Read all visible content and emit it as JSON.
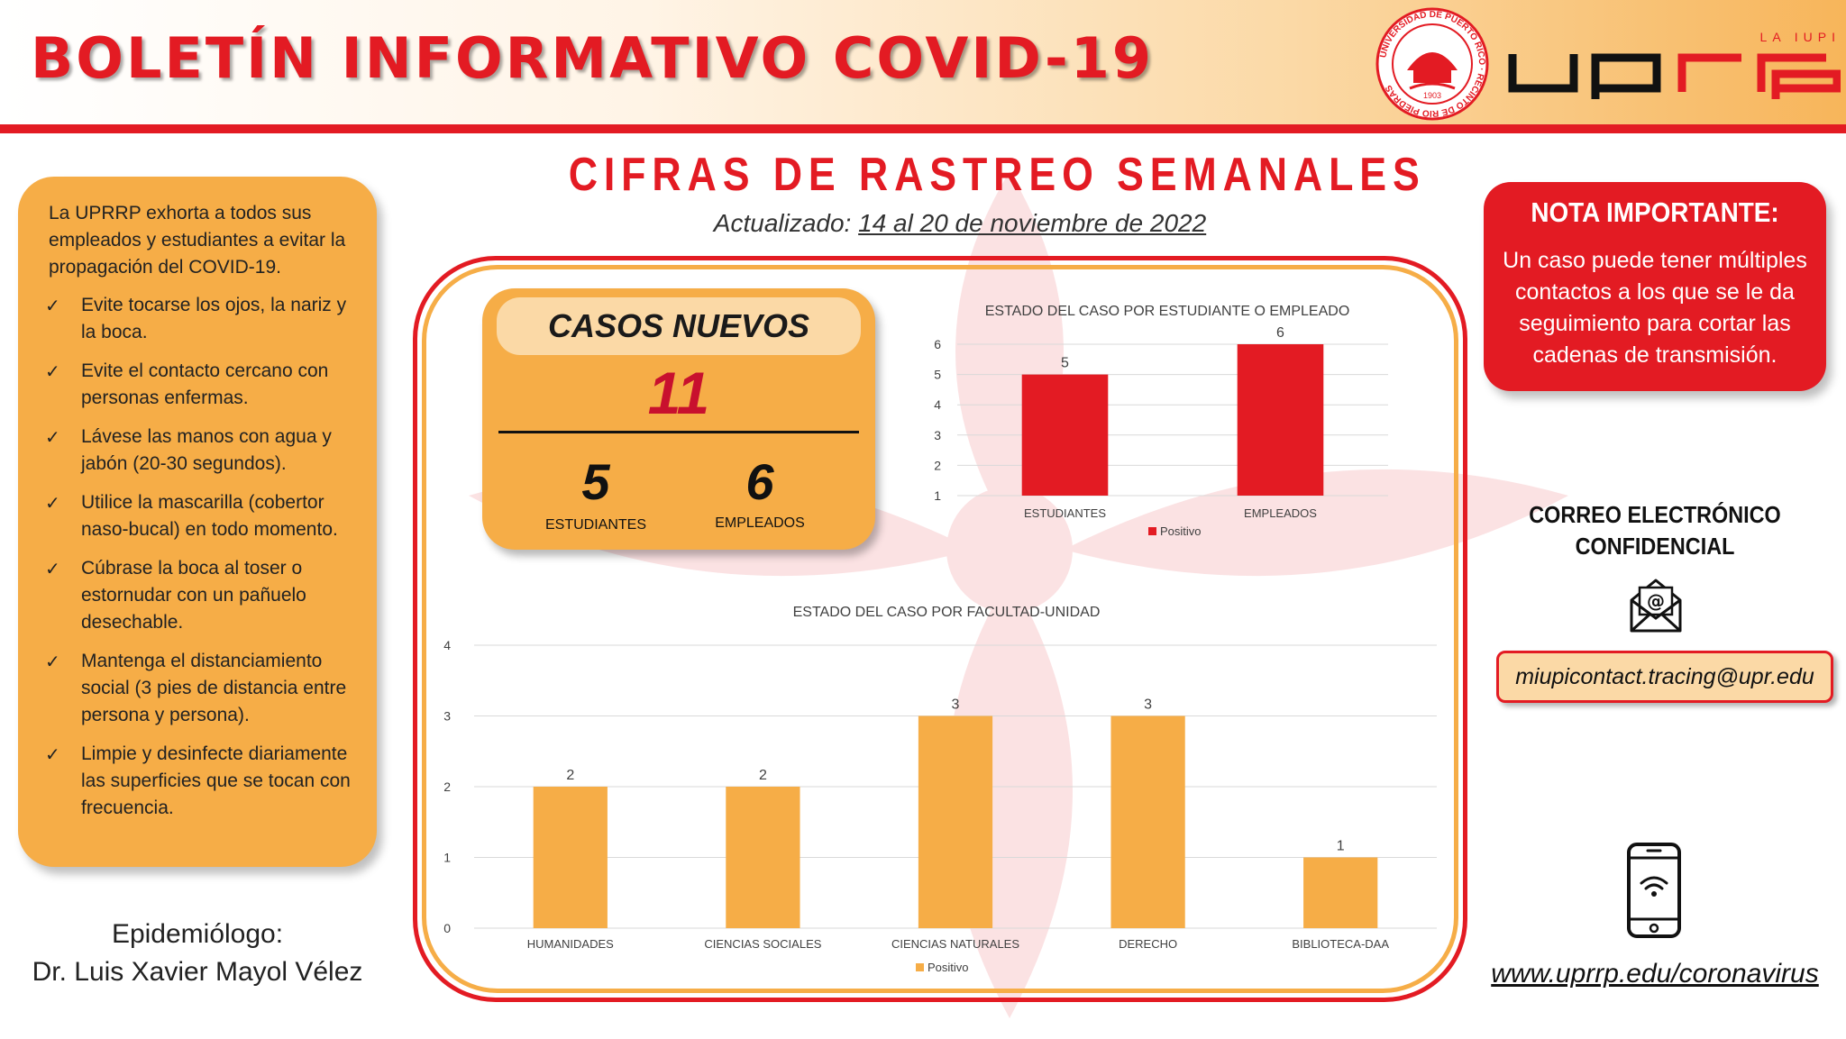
{
  "header": {
    "title": "BOLETÍN INFORMATIVO COVID-19",
    "logo_text": "uprrp",
    "logo_tagline": "LA IUPI",
    "seal_text": "UNIVERSIDAD DE PUERTO RICO · RECINTO DE RÍO PIEDRAS",
    "seal_year": "1903"
  },
  "main": {
    "title": "CIFRAS DE RASTREO SEMANALES",
    "updated_label": "Actualizado:",
    "updated_range": "14 al 20 de noviembre de 2022"
  },
  "left_panel": {
    "intro": "La UPRRP exhorta a todos sus empleados y estudiantes a evitar la propagación del COVID-19.",
    "tips": [
      "Evite tocarse los ojos, la nariz y la boca.",
      "Evite el contacto cercano con personas enfermas.",
      "Lávese las manos con agua y jabón (20-30 segundos).",
      "Utilice la mascarilla (cobertor naso-bucal) en todo momento.",
      "Cúbrase la boca al toser o estornudar con un pañuelo desechable.",
      "Mantenga el distanciamiento social (3 pies de distancia entre persona y persona).",
      "Limpie y desinfecte diariamente las superficies que se tocan con frecuencia."
    ],
    "checkmark": "✓"
  },
  "epidemiologist": {
    "label": "Epidemiólogo:",
    "name": "Dr. Luis Xavier Mayol Vélez"
  },
  "new_cases": {
    "title": "CASOS NUEVOS",
    "total": "11",
    "students_value": "5",
    "students_label": "ESTUDIANTES",
    "employees_value": "6",
    "employees_label": "EMPLEADOS"
  },
  "chart_data": [
    {
      "type": "bar",
      "title": "ESTADO DEL CASO POR ESTUDIANTE O EMPLEADO",
      "categories": [
        "ESTUDIANTES",
        "EMPLEADOS"
      ],
      "series": [
        {
          "name": "Positivo",
          "values": [
            5,
            6
          ]
        }
      ],
      "ylim": [
        1,
        6
      ],
      "yticks": [
        1,
        2,
        3,
        4,
        5,
        6
      ],
      "grid": true,
      "legend": "bottom",
      "color": "#e31b23"
    },
    {
      "type": "bar",
      "title": "ESTADO DEL CASO POR FACULTAD-UNIDAD",
      "categories": [
        "HUMANIDADES",
        "CIENCIAS SOCIALES",
        "CIENCIAS NATURALES",
        "DERECHO",
        "BIBLIOTECA-DAA"
      ],
      "series": [
        {
          "name": "Positivo",
          "values": [
            2,
            2,
            3,
            3,
            1
          ]
        }
      ],
      "ylim": [
        0,
        4
      ],
      "yticks": [
        0,
        1,
        2,
        3,
        4
      ],
      "grid": true,
      "legend": "bottom",
      "color": "#f6ad47"
    }
  ],
  "note": {
    "title": "NOTA IMPORTANTE:",
    "text": "Un caso puede tener múltiples contactos a los que se le da seguimiento para cortar las cadenas de transmisión."
  },
  "contact": {
    "label": "CORREO ELECTRÓNICO CONFIDENCIAL",
    "email": "miupicontact.tracing@upr.edu",
    "website": "www.uprrp.edu/coronavirus",
    "mail_icon": "envelope-at-icon",
    "phone_icon": "smartphone-wifi-icon"
  },
  "colors": {
    "red": "#e31b23",
    "orange": "#f6ad47",
    "light_orange": "#fbd9a6"
  }
}
